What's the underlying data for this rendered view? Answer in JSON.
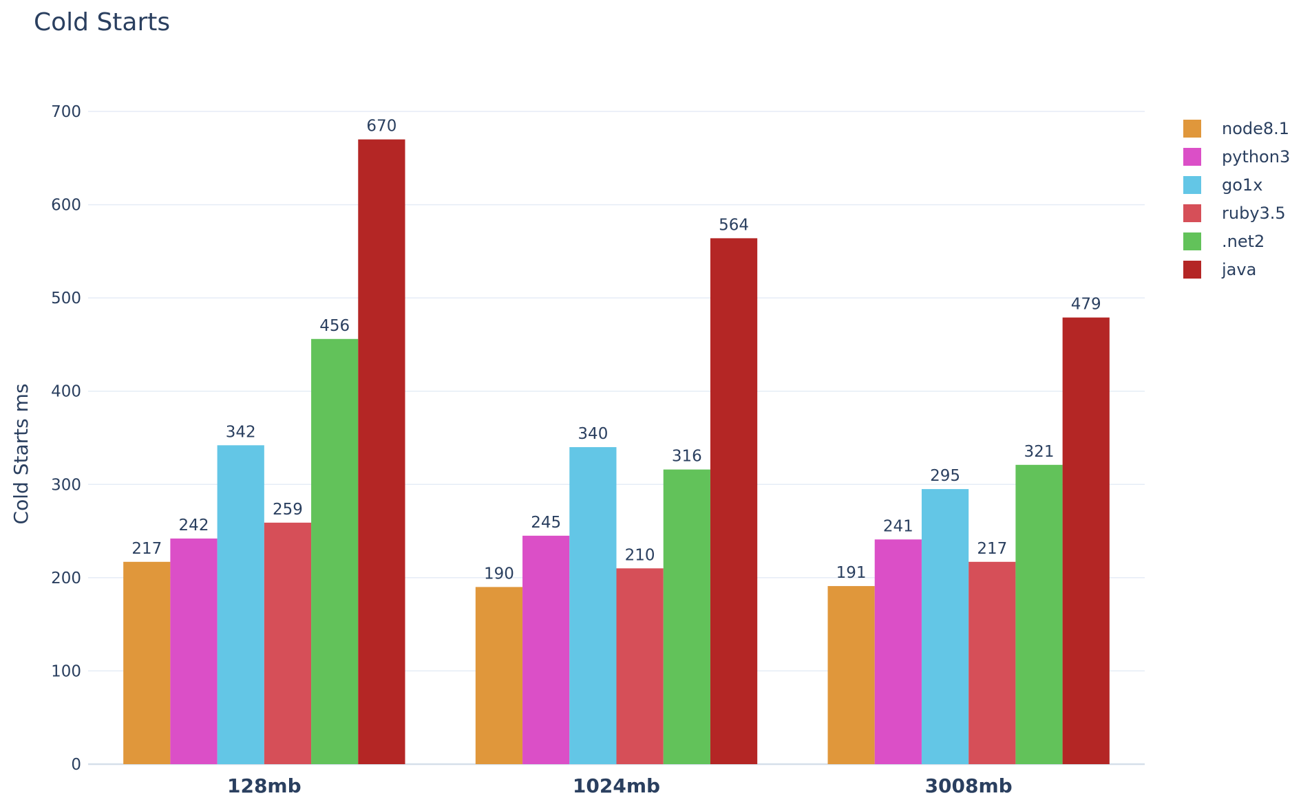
{
  "chart_data": {
    "type": "bar",
    "title": "Cold Starts",
    "xlabel": "",
    "ylabel": "Cold Starts ms",
    "ylim": [
      0,
      700
    ],
    "yticks": [
      0,
      100,
      200,
      300,
      400,
      500,
      600,
      700
    ],
    "grid": true,
    "legend_position": "top-right",
    "categories": [
      "128mb",
      "1024mb",
      "3008mb"
    ],
    "series": [
      {
        "name": "node8.1",
        "color": "#e0973b",
        "values": [
          217,
          190,
          191
        ]
      },
      {
        "name": "python3",
        "color": "#db4fc7",
        "values": [
          242,
          245,
          241
        ]
      },
      {
        "name": "go1x",
        "color": "#63c6e6",
        "values": [
          342,
          340,
          295
        ]
      },
      {
        "name": "ruby3.5",
        "color": "#d64f58",
        "values": [
          259,
          210,
          217
        ]
      },
      {
        "name": ".net2",
        "color": "#62c25a",
        "values": [
          456,
          316,
          321
        ]
      },
      {
        "name": "java",
        "color": "#b42625",
        "values": [
          670,
          564,
          479
        ]
      }
    ]
  }
}
